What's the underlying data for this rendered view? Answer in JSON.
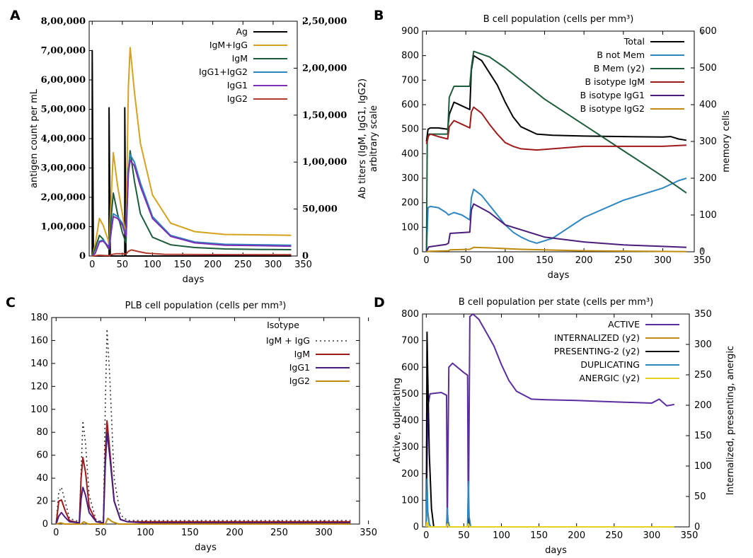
{
  "chart_data": [
    {
      "panel_label": "A",
      "type": "line",
      "title": "",
      "xlabel": "days",
      "ylabel": "antigen count per mL",
      "y2label": [
        "Ab titers (IgM, IgG1, IgG2)",
        "arbitrary scale"
      ],
      "xlim": [
        -5,
        340
      ],
      "ylim": [
        0,
        800000
      ],
      "y2lim": [
        0,
        250000
      ],
      "xticks": [
        0,
        50,
        100,
        150,
        200,
        250,
        300,
        350
      ],
      "yticks": [
        0,
        100000,
        200000,
        300000,
        400000,
        500000,
        600000,
        700000,
        800000
      ],
      "yticklabels": [
        "0",
        "1,00,000",
        "2,00,000",
        "3,00,000",
        "4,00,000",
        "5,00,000",
        "6,00,000",
        "7,00,000",
        "8,00,000"
      ],
      "y2ticks": [
        0,
        50000,
        100000,
        150000,
        200000,
        250000
      ],
      "y2ticklabels": [
        "0",
        "50,000",
        "1,00,000",
        "1,50,000",
        "2,00,000",
        "2,50,000"
      ],
      "legend_position": "top-right",
      "series": [
        {
          "name": "Ag",
          "color": "#000000",
          "axis": "y",
          "x": [
            0,
            0,
            2,
            28,
            28,
            30,
            54,
            54,
            56,
            330
          ],
          "y": [
            0,
            700000,
            0,
            0,
            505000,
            0,
            0,
            505000,
            0,
            0
          ]
        },
        {
          "name": "IgM+IgG",
          "color": "#d6a21e",
          "axis": "y2",
          "x": [
            0,
            5,
            12,
            18,
            26,
            28,
            32,
            35,
            42,
            50,
            56,
            60,
            63,
            70,
            80,
            100,
            130,
            170,
            220,
            280,
            330
          ],
          "y": [
            0,
            12000,
            40000,
            33000,
            18000,
            12000,
            70000,
            110000,
            75000,
            45000,
            22000,
            180000,
            222000,
            175000,
            120000,
            65000,
            35000,
            26000,
            23000,
            22500,
            22000
          ]
        },
        {
          "name": "IgM",
          "color": "#1d5c3a",
          "axis": "y2",
          "x": [
            0,
            5,
            12,
            18,
            26,
            28,
            32,
            35,
            42,
            50,
            56,
            60,
            63,
            70,
            80,
            100,
            130,
            170,
            220,
            280,
            330
          ],
          "y": [
            0,
            8000,
            22000,
            18000,
            9000,
            7000,
            45000,
            67000,
            45000,
            25000,
            14000,
            90000,
            112000,
            80000,
            45000,
            20000,
            12000,
            9000,
            7500,
            7000,
            6800
          ]
        },
        {
          "name": "IgG1+IgG2",
          "color": "#2e86c1",
          "axis": "y2",
          "x": [
            0,
            5,
            12,
            18,
            26,
            28,
            32,
            35,
            42,
            50,
            56,
            60,
            63,
            70,
            80,
            100,
            130,
            170,
            220,
            280,
            330
          ],
          "y": [
            0,
            3000,
            16000,
            17000,
            11000,
            8000,
            30000,
            45000,
            42000,
            35000,
            22000,
            92000,
            108000,
            100000,
            78000,
            42000,
            22000,
            15000,
            12500,
            12000,
            11500
          ]
        },
        {
          "name": "IgG1",
          "color": "#7b2fb5",
          "axis": "y2",
          "x": [
            0,
            5,
            12,
            18,
            26,
            28,
            32,
            35,
            42,
            50,
            56,
            60,
            63,
            70,
            80,
            100,
            130,
            170,
            220,
            280,
            330
          ],
          "y": [
            0,
            2800,
            15000,
            16000,
            10500,
            7500,
            28000,
            42000,
            40000,
            33000,
            21000,
            88000,
            102000,
            96000,
            74000,
            40000,
            21000,
            14000,
            11500,
            11000,
            10500
          ]
        },
        {
          "name": "IgG2",
          "color": "#b03a2e",
          "axis": "y2",
          "x": [
            0,
            5,
            12,
            20,
            28,
            32,
            40,
            50,
            56,
            60,
            65,
            75,
            90,
            120,
            200,
            330
          ],
          "y": [
            0,
            300,
            800,
            500,
            400,
            1500,
            2500,
            2300,
            2000,
            5000,
            6500,
            5000,
            3000,
            1800,
            1500,
            1400
          ]
        }
      ]
    },
    {
      "panel_label": "B",
      "type": "line",
      "title": "B cell population (cells per mm³)",
      "xlabel": "days",
      "ylabel": "",
      "y2label": "memory cells",
      "xlim": [
        -5,
        340
      ],
      "ylim": [
        0,
        900
      ],
      "y2lim": [
        0,
        600
      ],
      "xticks": [
        0,
        50,
        100,
        150,
        200,
        250,
        300,
        350
      ],
      "yticks": [
        0,
        100,
        200,
        300,
        400,
        500,
        600,
        700,
        800,
        900
      ],
      "y2ticks": [
        0,
        100,
        200,
        300,
        400,
        500,
        600
      ],
      "legend_position": "top-right",
      "series": [
        {
          "name": "Total",
          "color": "#000000",
          "axis": "y",
          "x": [
            0,
            2,
            5,
            15,
            27,
            29,
            35,
            45,
            55,
            57,
            60,
            70,
            80,
            90,
            100,
            110,
            120,
            140,
            160,
            200,
            250,
            300,
            310,
            320,
            330
          ],
          "y": [
            450,
            500,
            505,
            505,
            500,
            560,
            610,
            595,
            580,
            740,
            800,
            780,
            730,
            680,
            610,
            550,
            510,
            480,
            475,
            472,
            470,
            468,
            470,
            460,
            455
          ]
        },
        {
          "name": "B not Mem",
          "color": "#2e86c1",
          "axis": "y",
          "x": [
            0,
            2,
            5,
            15,
            25,
            28,
            35,
            45,
            55,
            57,
            60,
            70,
            80,
            90,
            100,
            110,
            120,
            130,
            140,
            160,
            200,
            250,
            300,
            320,
            330
          ],
          "y": [
            0,
            180,
            185,
            180,
            160,
            150,
            160,
            150,
            130,
            220,
            255,
            230,
            190,
            150,
            110,
            80,
            60,
            45,
            35,
            55,
            140,
            210,
            260,
            290,
            300
          ]
        },
        {
          "name": "B Mem (y2)",
          "color": "#1d5c3a",
          "axis": "y2",
          "x": [
            0,
            1,
            3,
            10,
            27,
            29,
            35,
            45,
            55,
            57,
            60,
            80,
            100,
            150,
            200,
            250,
            300,
            330
          ],
          "y": [
            0,
            300,
            320,
            320,
            320,
            420,
            450,
            450,
            450,
            500,
            545,
            530,
            500,
            415,
            345,
            275,
            205,
            160
          ]
        },
        {
          "name": "B isotype IgM",
          "color": "#9e1a1a",
          "axis": "y",
          "x": [
            0,
            2,
            5,
            15,
            27,
            29,
            35,
            45,
            55,
            57,
            60,
            70,
            80,
            90,
            100,
            110,
            120,
            140,
            160,
            200,
            250,
            300,
            330
          ],
          "y": [
            440,
            470,
            480,
            470,
            460,
            510,
            535,
            520,
            505,
            570,
            590,
            565,
            520,
            480,
            445,
            430,
            420,
            415,
            420,
            430,
            430,
            430,
            435
          ]
        },
        {
          "name": "B isotype IgG1",
          "color": "#4b1d7a",
          "axis": "y",
          "x": [
            0,
            3,
            25,
            28,
            30,
            55,
            57,
            60,
            80,
            100,
            150,
            200,
            250,
            300,
            330
          ],
          "y": [
            0,
            20,
            30,
            35,
            75,
            80,
            170,
            195,
            160,
            110,
            60,
            40,
            28,
            22,
            18
          ]
        },
        {
          "name": "B isotype IgG2",
          "color": "#c08a0c",
          "axis": "y",
          "x": [
            0,
            5,
            28,
            30,
            55,
            60,
            80,
            120,
            200,
            330
          ],
          "y": [
            0,
            2,
            4,
            8,
            10,
            18,
            16,
            10,
            4,
            1
          ]
        }
      ]
    },
    {
      "panel_label": "C",
      "type": "line",
      "title": "PLB cell population (cells per mm³)",
      "xlabel": "days",
      "ylabel": "",
      "xlim": [
        -5,
        340
      ],
      "ylim": [
        0,
        180
      ],
      "xticks": [
        0,
        50,
        100,
        150,
        200,
        250,
        300,
        350
      ],
      "yticks": [
        0,
        20,
        40,
        60,
        80,
        100,
        120,
        140,
        160,
        180
      ],
      "legend_title": "Isotype",
      "legend_position": "top-right",
      "series": [
        {
          "name": "IgM + IgG",
          "color": "#333333",
          "axis": "y",
          "dashed": true,
          "x": [
            0,
            3,
            6,
            10,
            15,
            26,
            28,
            30,
            33,
            37,
            45,
            53,
            55,
            57,
            60,
            65,
            72,
            80,
            100,
            330
          ],
          "y": [
            0,
            28,
            32,
            20,
            5,
            2,
            45,
            90,
            70,
            25,
            3,
            2,
            100,
            170,
            130,
            40,
            8,
            3,
            3,
            3
          ]
        },
        {
          "name": "IgM",
          "color": "#9e1a1a",
          "axis": "y",
          "x": [
            0,
            3,
            6,
            10,
            15,
            26,
            28,
            30,
            33,
            37,
            45,
            53,
            55,
            57,
            60,
            65,
            72,
            80,
            100,
            330
          ],
          "y": [
            0,
            20,
            21,
            12,
            3,
            1,
            40,
            58,
            45,
            15,
            2,
            1,
            60,
            90,
            65,
            20,
            4,
            2,
            2,
            2
          ]
        },
        {
          "name": "IgG1",
          "color": "#4b1d7a",
          "axis": "y",
          "x": [
            0,
            3,
            6,
            10,
            15,
            26,
            28,
            30,
            33,
            37,
            45,
            53,
            55,
            57,
            60,
            65,
            72,
            80,
            100,
            330
          ],
          "y": [
            0,
            7,
            10,
            6,
            2,
            1,
            22,
            32,
            25,
            10,
            2,
            1,
            50,
            80,
            60,
            20,
            4,
            2,
            1,
            1
          ]
        },
        {
          "name": "IgG2",
          "color": "#c08a0c",
          "axis": "y",
          "x": [
            0,
            5,
            10,
            28,
            31,
            36,
            55,
            58,
            63,
            70,
            330
          ],
          "y": [
            0,
            1,
            0,
            0,
            2,
            0,
            0,
            5,
            2,
            0,
            0
          ]
        }
      ]
    },
    {
      "panel_label": "D",
      "type": "line",
      "title": "B cell population  per state (cells per mm³)",
      "xlabel": "days",
      "ylabel": "Active, duplicating",
      "y2label": "Internalized, presenting, anergic",
      "xlim": [
        -5,
        350
      ],
      "ylim": [
        0,
        800
      ],
      "y2lim": [
        0,
        350
      ],
      "xticks": [
        0,
        50,
        100,
        150,
        200,
        250,
        300,
        350
      ],
      "yticks": [
        0,
        100,
        200,
        300,
        400,
        500,
        600,
        700,
        800
      ],
      "y2ticks": [
        0,
        50,
        100,
        150,
        200,
        250,
        300,
        350
      ],
      "legend_position": "top-right",
      "series": [
        {
          "name": "ACTIVE",
          "color": "#5b2c9e",
          "axis": "y",
          "x": [
            0,
            2,
            5,
            20,
            27,
            28,
            30,
            35,
            50,
            55,
            56,
            58,
            62,
            70,
            80,
            90,
            100,
            110,
            120,
            140,
            160,
            200,
            250,
            300,
            310,
            320,
            330
          ],
          "y": [
            0,
            450,
            500,
            505,
            495,
            0,
            600,
            615,
            580,
            570,
            0,
            790,
            800,
            780,
            730,
            680,
            610,
            550,
            510,
            480,
            478,
            475,
            470,
            465,
            480,
            455,
            460
          ]
        },
        {
          "name": "INTERNALIZED (y2)",
          "color": "#c08a0c",
          "axis": "y2",
          "x": [
            0,
            1,
            2,
            4,
            6,
            27,
            28,
            29,
            31,
            55,
            56,
            57,
            59,
            330
          ],
          "y": [
            0,
            80,
            20,
            5,
            0,
            0,
            30,
            10,
            0,
            0,
            60,
            15,
            0,
            0
          ]
        },
        {
          "name": "PRESENTING-2 (y2)",
          "color": "#000000",
          "axis": "y2",
          "x": [
            0,
            1,
            2,
            4,
            7,
            10,
            27,
            28,
            29,
            31,
            55,
            56,
            57,
            59,
            330
          ],
          "y": [
            0,
            320,
            250,
            120,
            30,
            0,
            0,
            20,
            5,
            0,
            0,
            15,
            5,
            0,
            0
          ]
        },
        {
          "name": "DUPLICATING",
          "color": "#2e86c1",
          "axis": "y",
          "x": [
            0,
            1,
            2,
            4,
            6,
            27,
            28,
            29,
            31,
            55,
            56,
            57,
            59,
            330
          ],
          "y": [
            0,
            180,
            60,
            10,
            0,
            0,
            70,
            20,
            0,
            0,
            170,
            40,
            0,
            0
          ]
        },
        {
          "name": "ANERGIC (y2)",
          "color": "#e6d21e",
          "axis": "y2",
          "x": [
            0,
            1,
            3,
            27,
            28,
            30,
            55,
            56,
            58,
            330
          ],
          "y": [
            0,
            8,
            0,
            0,
            5,
            0,
            0,
            5,
            0,
            0
          ]
        }
      ]
    }
  ]
}
